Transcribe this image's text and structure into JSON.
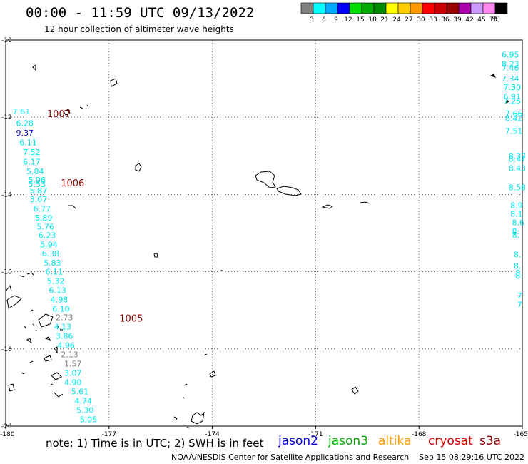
{
  "header": {
    "title": "00:00 - 11:59 UTC 09/13/2022",
    "subtitle": "12 hour collection of altimeter wave heights"
  },
  "colorbar": {
    "unit": "(ft)",
    "bins": [
      {
        "label": "3",
        "color": "#808080"
      },
      {
        "label": "6",
        "color": "#00ffff"
      },
      {
        "label": "9",
        "color": "#00aaff"
      },
      {
        "label": "12",
        "color": "#0000ff"
      },
      {
        "label": "15",
        "color": "#00dd00"
      },
      {
        "label": "18",
        "color": "#00aa00"
      },
      {
        "label": "21",
        "color": "#008800"
      },
      {
        "label": "24",
        "color": "#ffff00"
      },
      {
        "label": "27",
        "color": "#ffcc00"
      },
      {
        "label": "30",
        "color": "#ff9900"
      },
      {
        "label": "33",
        "color": "#ff0000"
      },
      {
        "label": "36",
        "color": "#cc0000"
      },
      {
        "label": "39",
        "color": "#990000"
      },
      {
        "label": "42",
        "color": "#aa00aa"
      },
      {
        "label": "45",
        "color": "#cc99ff"
      },
      {
        "label": "70",
        "color": "#ff88ee"
      },
      {
        "label": "",
        "color": "#000000"
      }
    ]
  },
  "map": {
    "lon_range": [
      -180,
      -165
    ],
    "lat_range": [
      -20,
      -10
    ],
    "lon_ticks": [
      "-180",
      "-177",
      "-174",
      "-171",
      "-168",
      "-165"
    ],
    "lat_ticks": [
      "-10",
      "-12",
      "-14",
      "-16",
      "-18",
      "-20"
    ],
    "pressure_labels": [
      {
        "text": "1007",
        "lon": -178.8,
        "lat": -11.9
      },
      {
        "text": "1006",
        "lon": -178.4,
        "lat": -13.7
      },
      {
        "text": "1005",
        "lon": -176.7,
        "lat": -17.2
      }
    ],
    "track_west": {
      "color": "#00e5ee",
      "points": [
        {
          "text": "7.61",
          "lon": -179.8,
          "lat": -11.85
        },
        {
          "text": "6.28",
          "lon": -179.7,
          "lat": -12.15
        },
        {
          "text": "9.37",
          "lon": -179.7,
          "lat": -12.4,
          "color": "#0000cc"
        },
        {
          "text": "6.11",
          "lon": -179.6,
          "lat": -12.65
        },
        {
          "text": "7.52",
          "lon": -179.5,
          "lat": -12.9
        },
        {
          "text": "6.17",
          "lon": -179.5,
          "lat": -13.15
        },
        {
          "text": "5.84",
          "lon": -179.4,
          "lat": -13.4
        },
        {
          "text": "5.96",
          "lon": -179.35,
          "lat": -13.62
        },
        {
          "text": "5.53",
          "lon": -179.35,
          "lat": -13.73
        },
        {
          "text": "5.87",
          "lon": -179.3,
          "lat": -13.9
        },
        {
          "text": "3.07",
          "lon": -179.3,
          "lat": -14.12
        },
        {
          "text": "6.77",
          "lon": -179.2,
          "lat": -14.37
        },
        {
          "text": "5.89",
          "lon": -179.15,
          "lat": -14.6
        },
        {
          "text": "5.76",
          "lon": -179.1,
          "lat": -14.83
        },
        {
          "text": "6.23",
          "lon": -179.05,
          "lat": -15.06
        },
        {
          "text": "5.94",
          "lon": -179.0,
          "lat": -15.3
        },
        {
          "text": "6.38",
          "lon": -178.95,
          "lat": -15.53
        },
        {
          "text": "5.83",
          "lon": -178.9,
          "lat": -15.77
        },
        {
          "text": "6.11",
          "lon": -178.85,
          "lat": -16.0
        },
        {
          "text": "5.32",
          "lon": -178.8,
          "lat": -16.24
        },
        {
          "text": "6.13",
          "lon": -178.75,
          "lat": -16.48
        },
        {
          "text": "4.98",
          "lon": -178.7,
          "lat": -16.72
        },
        {
          "text": "6.10",
          "lon": -178.65,
          "lat": -16.96
        },
        {
          "text": "2.73",
          "lon": -178.55,
          "lat": -17.18,
          "color": "#808080"
        },
        {
          "text": "4.13",
          "lon": -178.6,
          "lat": -17.42
        },
        {
          "text": "3.86",
          "lon": -178.55,
          "lat": -17.66
        },
        {
          "text": "4.96",
          "lon": -178.5,
          "lat": -17.9
        },
        {
          "text": "2.13",
          "lon": -178.4,
          "lat": -18.14,
          "color": "#808080"
        },
        {
          "text": "1.57",
          "lon": -178.3,
          "lat": -18.38,
          "color": "#808080"
        },
        {
          "text": "3.07",
          "lon": -178.3,
          "lat": -18.62
        },
        {
          "text": "4.90",
          "lon": -178.3,
          "lat": -18.86
        },
        {
          "text": "5.61",
          "lon": -178.1,
          "lat": -19.1
        },
        {
          "text": "4.74",
          "lon": -178.0,
          "lat": -19.34
        },
        {
          "text": "5.30",
          "lon": -177.95,
          "lat": -19.58
        },
        {
          "text": "5.05",
          "lon": -177.85,
          "lat": -19.82
        }
      ]
    },
    "track_east": {
      "color": "#00e5ee",
      "points": [
        {
          "text": "6.95",
          "lon": -165.6,
          "lat": -10.38
        },
        {
          "text": "8.23",
          "lon": -165.6,
          "lat": -10.62
        },
        {
          "text": "7.46",
          "lon": -165.6,
          "lat": -10.72
        },
        {
          "text": "7.34",
          "lon": -165.6,
          "lat": -11.0
        },
        {
          "text": "7.30",
          "lon": -165.55,
          "lat": -11.22
        },
        {
          "text": "6.91",
          "lon": -165.55,
          "lat": -11.46
        },
        {
          "text": "7.25",
          "lon": -165.55,
          "lat": -11.58
        },
        {
          "text": "7.66",
          "lon": -165.5,
          "lat": -11.9
        },
        {
          "text": "8.42",
          "lon": -165.5,
          "lat": -12.02
        },
        {
          "text": "7.51",
          "lon": -165.5,
          "lat": -12.36
        },
        {
          "text": "8.37",
          "lon": -165.4,
          "lat": -13.0
        },
        {
          "text": "8.47",
          "lon": -165.4,
          "lat": -13.08
        },
        {
          "text": "8.43",
          "lon": -165.4,
          "lat": -13.32
        },
        {
          "text": "8.58",
          "lon": -165.4,
          "lat": -13.82
        },
        {
          "text": "8.9",
          "lon": -165.35,
          "lat": -14.28
        },
        {
          "text": "8.1",
          "lon": -165.35,
          "lat": -14.5
        },
        {
          "text": "8.6",
          "lon": -165.3,
          "lat": -14.72
        },
        {
          "text": "8.",
          "lon": -165.3,
          "lat": -14.95
        },
        {
          "text": "8.",
          "lon": -165.3,
          "lat": -15.05
        },
        {
          "text": "8.",
          "lon": -165.25,
          "lat": -15.55
        },
        {
          "text": "8.",
          "lon": -165.25,
          "lat": -15.85
        },
        {
          "text": "8.",
          "lon": -165.2,
          "lat": -16.03
        },
        {
          "text": "8.",
          "lon": -165.2,
          "lat": -16.1
        },
        {
          "text": "7",
          "lon": -165.15,
          "lat": -16.62
        },
        {
          "text": "7",
          "lon": -165.15,
          "lat": -16.85
        }
      ]
    }
  },
  "footer": {
    "note": "note: 1) Time is in UTC; 2) SWH is in feet",
    "satellites": [
      {
        "text": "jason2",
        "color": "#0000dd"
      },
      {
        "text": "jason3",
        "color": "#00aa00"
      },
      {
        "text": "altika",
        "color": "#ff9900"
      },
      {
        "text": "cryosat",
        "color": "#dd0000"
      },
      {
        "text": "s3a",
        "color": "#880000"
      }
    ],
    "credit": "NOAA/NESDIS Center for Satellite Applications and Research    Sep 15 08:29:16 UTC 2022"
  }
}
